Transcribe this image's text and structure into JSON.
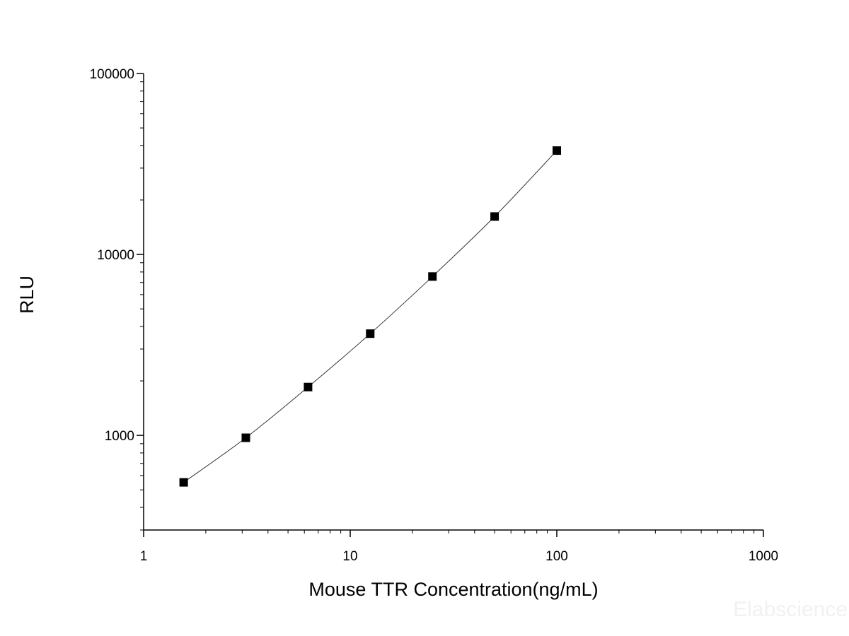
{
  "chart_data": {
    "type": "scatter",
    "title": "",
    "xlabel": "Mouse TTR Concentration(ng/mL)",
    "ylabel": "RLU",
    "x_scale": "log",
    "y_scale": "log",
    "xlim": [
      1,
      1000
    ],
    "ylim": [
      300,
      100000
    ],
    "x_ticks": [
      1,
      10,
      100,
      1000
    ],
    "x_tick_labels": [
      "1",
      "10",
      "100",
      "1000"
    ],
    "y_ticks": [
      1000,
      10000,
      100000
    ],
    "y_tick_labels": [
      "1000",
      "10000",
      "100000"
    ],
    "grid": false,
    "legend": "none",
    "series": [
      {
        "x": [
          1.5625,
          3.125,
          6.25,
          12.5,
          25,
          50,
          100
        ],
        "y": [
          550,
          970,
          1850,
          3650,
          7550,
          16200,
          37500
        ],
        "marker": "square",
        "color": "#000000",
        "fit_line": true
      }
    ]
  },
  "watermark": "Elabscience"
}
